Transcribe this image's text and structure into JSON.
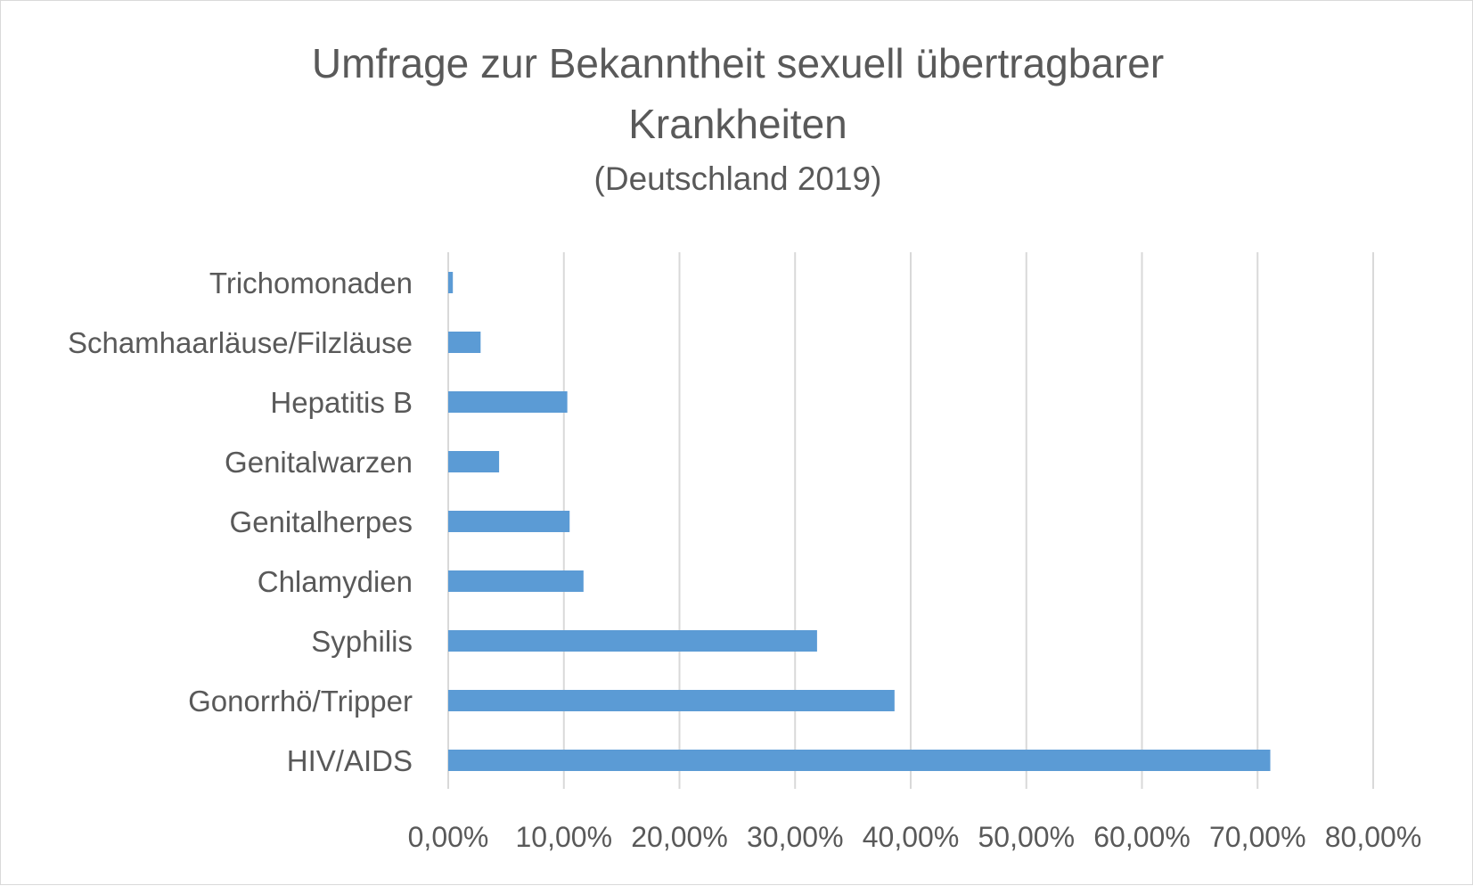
{
  "chart_data": {
    "type": "bar",
    "orientation": "horizontal",
    "title_lines": [
      "Umfrage zur Bekanntheit sexuell übertragbarer",
      "Krankheiten"
    ],
    "subtitle": "(Deutschland 2019)",
    "categories": [
      "Trichomonaden",
      "Schamhaarläuse/Filzläuse",
      "Hepatitis B",
      "Genitalwarzen",
      "Genitalherpes",
      "Chlamydien",
      "Syphilis",
      "Gonorrhö/Tripper",
      "HIV/AIDS"
    ],
    "values": [
      0.4,
      2.8,
      10.3,
      4.4,
      10.5,
      11.7,
      31.9,
      38.6,
      71.1
    ],
    "xlim": [
      0,
      80
    ],
    "x_ticks": [
      0,
      10,
      20,
      30,
      40,
      50,
      60,
      70,
      80
    ],
    "x_tick_labels": [
      "0,00%",
      "10,00%",
      "20,00%",
      "30,00%",
      "40,00%",
      "50,00%",
      "60,00%",
      "70,00%",
      "80,00%"
    ],
    "xlabel": "",
    "ylabel": "",
    "grid": true,
    "legend": "none",
    "bar_color": "#5b9bd5",
    "grid_color": "#d9d9d9",
    "text_color": "#595959"
  }
}
